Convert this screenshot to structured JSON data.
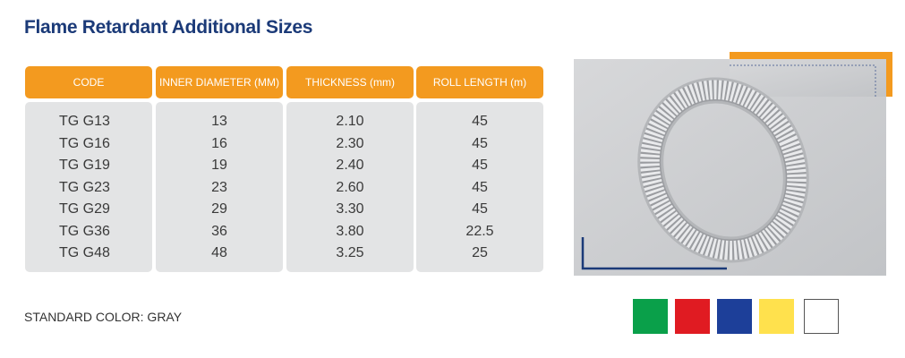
{
  "header": {
    "title": "Flame Retardant Additional Sizes"
  },
  "table": {
    "columns": [
      "CODE",
      "INNER DIAMETER (MM)",
      "THICKNESS (mm)",
      "ROLL LENGTH (m)"
    ],
    "rows": [
      [
        "TG G13",
        "13",
        "2.10",
        "45"
      ],
      [
        "TG G16",
        "16",
        "2.30",
        "45"
      ],
      [
        "TG G19",
        "19",
        "2.40",
        "45"
      ],
      [
        "TG G23",
        "23",
        "2.60",
        "45"
      ],
      [
        "TG G29",
        "29",
        "3.30",
        "45"
      ],
      [
        "TG G36",
        "36",
        "3.80",
        "22.5"
      ],
      [
        "TG G48",
        "48",
        "3.25",
        "25"
      ]
    ]
  },
  "footer": {
    "standard_color": "STANDARD COLOR: GRAY"
  }
}
